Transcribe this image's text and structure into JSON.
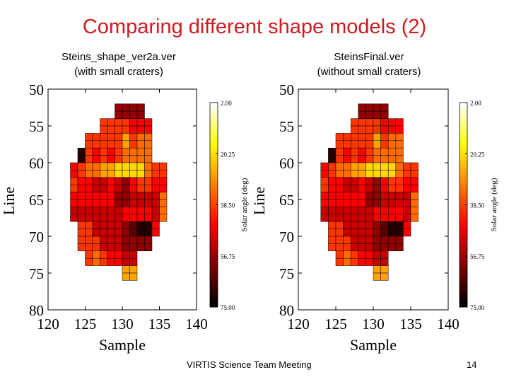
{
  "slide": {
    "title": "Comparing different shape models (2)",
    "footer_text": "VIRTIS Science Team Meeting",
    "page_number": "14"
  },
  "colors": {
    "title": "#d21a1a"
  },
  "panels": [
    {
      "label_line1": "Steins_shape_ver2a.ver",
      "label_line2": "(with small craters)"
    },
    {
      "label_line1": "SteinsFinal.ver",
      "label_line2": "(without small craters)"
    }
  ],
  "chart_data": [
    {
      "type": "heatmap",
      "xlabel": "Sample",
      "ylabel": "Line",
      "xlim": [
        120,
        140
      ],
      "ylim": [
        80,
        50
      ],
      "xticks": [
        "120",
        "125",
        "130",
        "135",
        "140"
      ],
      "yticks": [
        "50",
        "55",
        "60",
        "65",
        "70",
        "75",
        "80"
      ],
      "grid": false,
      "colorbar": {
        "label": "Solar angle (deg)",
        "ticks": [
          "2.00",
          "20.25",
          "38.50",
          "56.75",
          "75.00"
        ],
        "range": [
          2,
          75
        ],
        "colormap": "hot"
      },
      "cell_start": {
        "sample": 125,
        "line": 58
      },
      "rows": [
        "........2222.........",
        "........2222.........",
        "......5555444........",
        "......5555444........",
        "....555557566........",
        "....555557566........",
        "...0545456666........",
        "...0545456666........",
        "..4566778888655......",
        "..4566778888655......",
        "..5443343245544......",
        "..5443343245544......",
        "..4444442233336......",
        "..4444442233336......",
        "..3333333444436......",
        "..3333333444436......",
        "...55333321004.......",
        "...55333321004.......",
        "...5553332222........",
        "...5553332222........",
        "....5654433..........",
        "....5654433..........",
        ".........77..........",
        ".........77.........."
      ]
    },
    {
      "type": "heatmap",
      "xlabel": "Sample",
      "ylabel": "Line",
      "xlim": [
        120,
        140
      ],
      "ylim": [
        80,
        50
      ],
      "xticks": [
        "120",
        "125",
        "130",
        "135",
        "140"
      ],
      "yticks": [
        "50",
        "55",
        "60",
        "65",
        "70",
        "75",
        "80"
      ],
      "grid": false,
      "colorbar": {
        "label": "Solar angle (deg)",
        "ticks": [
          "2.00",
          "20.25",
          "38.50",
          "56.75",
          "75.00"
        ],
        "range": [
          2,
          75
        ],
        "colormap": "hot"
      },
      "cell_start": {
        "sample": 125,
        "line": 58
      },
      "rows": [
        ".......2222..........",
        ".......2222..........",
        "......5555444........",
        "......5555444........",
        "....555557566........",
        "....555557566........",
        "...0545456666........",
        "...0545456666........",
        "..4566778888655......",
        "..4566778888655......",
        "..5443343245544......",
        "..5443343245544......",
        "..4444442233336......",
        "..4444442233336......",
        "..3333333444436......",
        "..3333333444436......",
        "...55333321004.......",
        "...55333321004.......",
        "...5553332222........",
        "...5553332222........",
        "....5654433..........",
        "....5654433..........",
        ".........77..........",
        ".........77.........."
      ]
    }
  ]
}
